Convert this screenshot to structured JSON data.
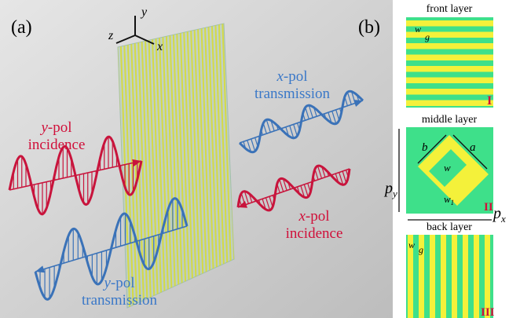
{
  "panel_a": {
    "label": "(a)",
    "axes": {
      "y": "y",
      "z": "z",
      "x": "x"
    },
    "waves": [
      {
        "pol": "y",
        "suffix": "-pol",
        "caption": "incidence"
      },
      {
        "pol": "x",
        "suffix": "-pol",
        "caption": "transmission"
      },
      {
        "pol": "x",
        "suffix": "-pol",
        "caption": "incidence"
      },
      {
        "pol": "y",
        "suffix": "-pol",
        "caption": "transmission"
      }
    ]
  },
  "panel_b": {
    "label": "(b)",
    "front": {
      "title": "front layer",
      "w": "w",
      "g": "g",
      "marker": "I"
    },
    "middle": {
      "title": "middle layer",
      "b": "b",
      "a": "a",
      "w": "w",
      "w1": "w",
      "w1_sub": "1",
      "py": "p",
      "py_sub": "y",
      "px": "p",
      "px_sub": "x",
      "marker": "II"
    },
    "back": {
      "title": "back layer",
      "w": "w",
      "g": "g",
      "marker": "III"
    }
  }
}
